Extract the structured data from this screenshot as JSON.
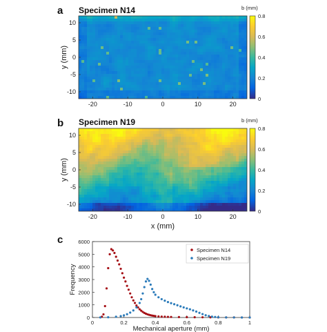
{
  "chart_data": [
    {
      "type": "heatmap",
      "panel": "a",
      "title": "Specimen N14",
      "xlabel": "",
      "ylabel": "y (mm)",
      "colorbar_label": "b (mm)",
      "xlim": [
        -24,
        24
      ],
      "ylim": [
        -12,
        12
      ],
      "clim": [
        0,
        0.8
      ],
      "xticks": [
        "-20",
        "-10",
        "0",
        "10",
        "20"
      ],
      "xtick_values": [
        -20,
        -10,
        0,
        10,
        20
      ],
      "yticks": [
        "10",
        "5",
        "0",
        "-5",
        "-10"
      ],
      "ytick_values": [
        10,
        5,
        0,
        -5,
        -10
      ],
      "cticks": [
        "0.8",
        "0.6",
        "0.4",
        "0.2",
        "0"
      ],
      "ctick_values": [
        0.8,
        0.6,
        0.4,
        0.2,
        0
      ],
      "typical_value": 0.22
    },
    {
      "type": "heatmap",
      "panel": "b",
      "title": "Specimen N19",
      "xlabel": "x (mm)",
      "ylabel": "y (mm)",
      "colorbar_label": "b (mm)",
      "xlim": [
        -24,
        24
      ],
      "ylim": [
        -12,
        12
      ],
      "clim": [
        0,
        0.8
      ],
      "xticks": [
        "-20",
        "-10",
        "0",
        "10",
        "20"
      ],
      "xtick_values": [
        -20,
        -10,
        0,
        10,
        20
      ],
      "yticks": [
        "10",
        "5",
        "0",
        "-5",
        "-10"
      ],
      "ytick_values": [
        10,
        5,
        0,
        -5,
        -10
      ],
      "cticks": [
        "0.8",
        "0.6",
        "0.4",
        "0.2",
        "0"
      ],
      "ctick_values": [
        0.8,
        0.6,
        0.4,
        0.2,
        0
      ],
      "typical_value": 0.45
    },
    {
      "type": "scatter",
      "panel": "c",
      "title": "",
      "xlabel": "Mechanical aperture (mm)",
      "ylabel": "Frequency",
      "xlim": [
        0,
        1
      ],
      "ylim": [
        0,
        6000
      ],
      "xticks": [
        "0",
        "0.2",
        "0.4",
        "0.6",
        "0.8",
        "1"
      ],
      "xtick_values": [
        0,
        0.2,
        0.4,
        0.6,
        0.8,
        1
      ],
      "yticks": [
        "0",
        "1000",
        "2000",
        "3000",
        "4000",
        "5000",
        "6000"
      ],
      "ytick_values": [
        0,
        1000,
        2000,
        3000,
        4000,
        5000,
        6000
      ],
      "legend_position": "top-right",
      "series": [
        {
          "name": "Specimen N14",
          "color": "#a50f15",
          "x": [
            0.06,
            0.07,
            0.08,
            0.09,
            0.1,
            0.11,
            0.12,
            0.13,
            0.14,
            0.15,
            0.16,
            0.17,
            0.18,
            0.19,
            0.2,
            0.21,
            0.22,
            0.23,
            0.24,
            0.25,
            0.26,
            0.27,
            0.28,
            0.29,
            0.3,
            0.31,
            0.32,
            0.33,
            0.34,
            0.35,
            0.36,
            0.37,
            0.38,
            0.39,
            0.4,
            0.42,
            0.44,
            0.46,
            0.48,
            0.5,
            0.55,
            0.6,
            0.65,
            0.7,
            0.75,
            0.8,
            0.85,
            0.9,
            0.95,
            1.0
          ],
          "y": [
            60,
            250,
            900,
            2300,
            3900,
            5000,
            5400,
            5300,
            5100,
            4800,
            4500,
            4200,
            3850,
            3500,
            3150,
            2850,
            2500,
            2200,
            1900,
            1600,
            1350,
            1150,
            950,
            800,
            650,
            540,
            440,
            360,
            300,
            250,
            210,
            180,
            150,
            130,
            110,
            85,
            70,
            60,
            50,
            45,
            35,
            28,
            22,
            18,
            14,
            10,
            8,
            6,
            4,
            3
          ]
        },
        {
          "name": "Specimen N19",
          "color": "#2b7bba",
          "x": [
            0.05,
            0.1,
            0.15,
            0.18,
            0.2,
            0.22,
            0.24,
            0.26,
            0.28,
            0.3,
            0.31,
            0.32,
            0.33,
            0.34,
            0.35,
            0.36,
            0.37,
            0.38,
            0.39,
            0.4,
            0.42,
            0.44,
            0.46,
            0.48,
            0.5,
            0.52,
            0.54,
            0.56,
            0.58,
            0.6,
            0.62,
            0.64,
            0.66,
            0.68,
            0.7,
            0.72,
            0.74,
            0.76,
            0.78,
            0.8,
            0.85,
            0.9,
            0.95,
            1.0
          ],
          "y": [
            5,
            20,
            60,
            110,
            170,
            260,
            390,
            560,
            800,
            1150,
            1450,
            1900,
            2400,
            2850,
            3050,
            2900,
            2600,
            2250,
            2000,
            1800,
            1600,
            1450,
            1330,
            1220,
            1130,
            1050,
            970,
            880,
            800,
            720,
            650,
            560,
            470,
            370,
            270,
            180,
            120,
            70,
            40,
            20,
            8,
            4,
            2,
            1
          ]
        }
      ]
    }
  ]
}
